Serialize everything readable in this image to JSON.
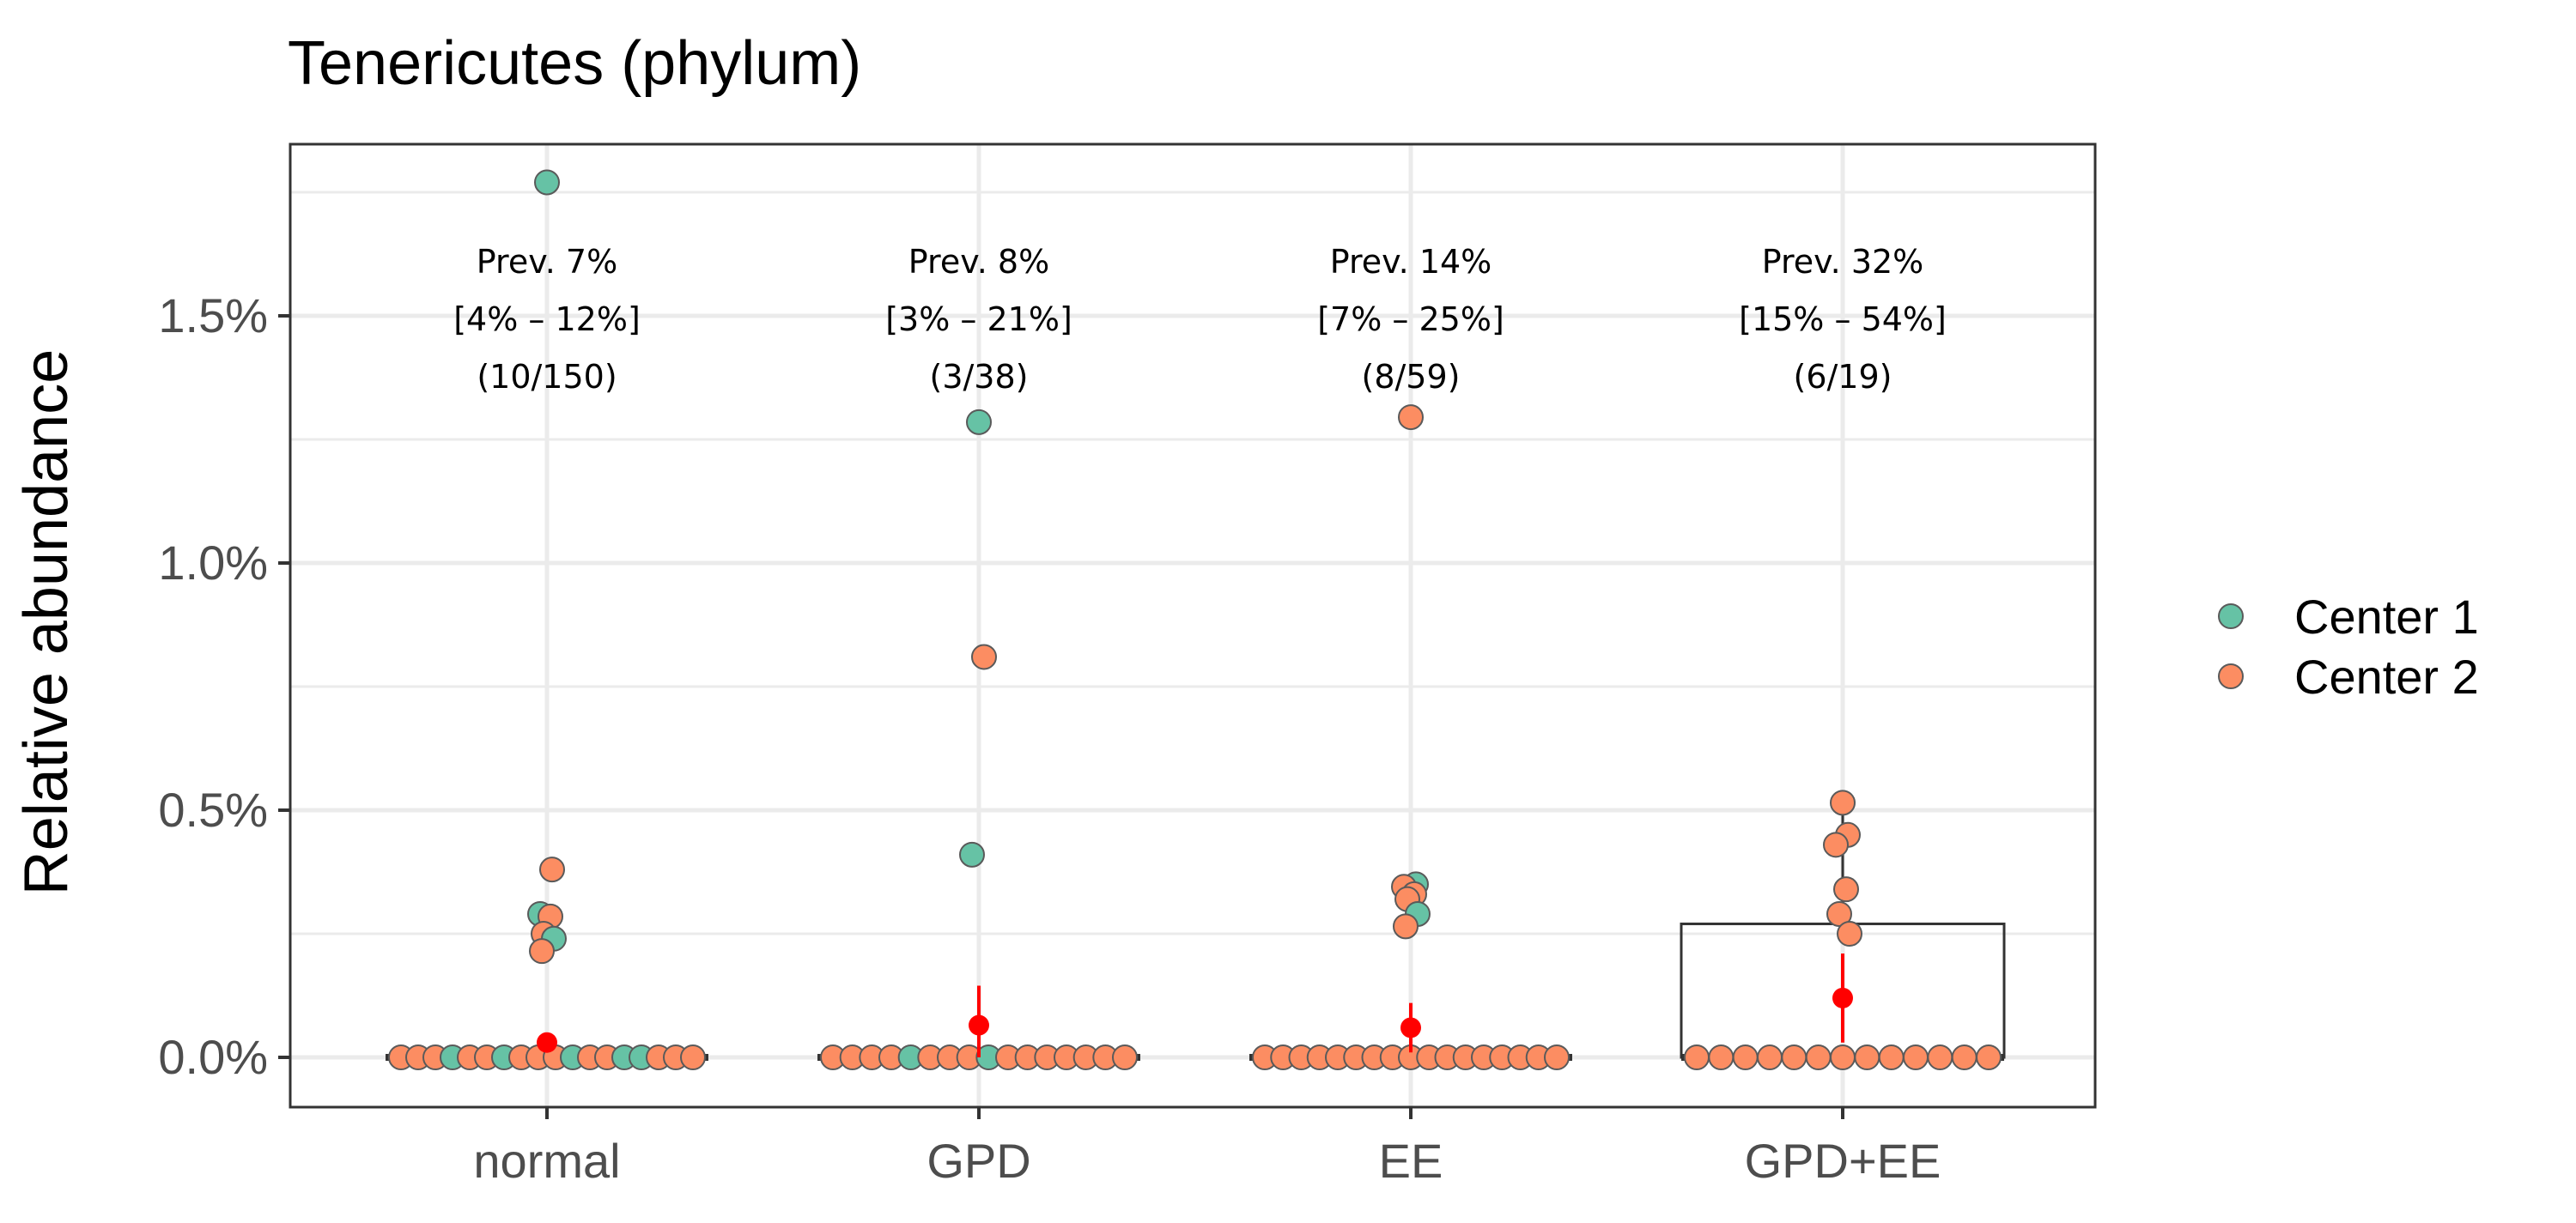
{
  "chart_data": {
    "type": "scatter",
    "title": "Tenericutes (phylum)",
    "xlabel": "",
    "ylabel": "Relative abundance",
    "ylim": [
      -0.1,
      1.85
    ],
    "yticks": [
      0,
      0.5,
      1.0,
      1.5
    ],
    "ytick_labels": [
      "0.0%",
      "0.5%",
      "1.0%",
      "1.5%"
    ],
    "grid": true,
    "legend": {
      "placement": "right",
      "entries": [
        {
          "name": "Center 1",
          "color": "#66c2a5"
        },
        {
          "name": "Center 2",
          "color": "#fc8d62"
        }
      ]
    },
    "categories": [
      "normal",
      "GPD",
      "EE",
      "GPD+EE"
    ],
    "groups": [
      {
        "category": "normal",
        "annotation": [
          "Prev. 7%",
          "[4% – 12%]",
          "(10/150)"
        ],
        "box": {
          "q1": 0,
          "median": 0,
          "q3": 0
        },
        "mean": 0.03,
        "ci": [
          0.03,
          0.03
        ],
        "points": [
          {
            "y": 1.77,
            "center": "Center 1"
          },
          {
            "y": 0.38,
            "center": "Center 2"
          },
          {
            "y": 0.29,
            "center": "Center 1"
          },
          {
            "y": 0.285,
            "center": "Center 2"
          },
          {
            "y": 0.25,
            "center": "Center 2"
          },
          {
            "y": 0.24,
            "center": "Center 1"
          },
          {
            "y": 0.215,
            "center": "Center 2"
          }
        ],
        "zero_points": [
          "Center 2",
          "Center 2",
          "Center 2",
          "Center 1",
          "Center 2",
          "Center 2",
          "Center 1",
          "Center 2",
          "Center 2",
          "Center 2",
          "Center 1",
          "Center 2",
          "Center 2",
          "Center 1",
          "Center 1",
          "Center 2",
          "Center 2",
          "Center 2"
        ]
      },
      {
        "category": "GPD",
        "annotation": [
          "Prev. 8%",
          "[3% – 21%]",
          "(3/38)"
        ],
        "box": {
          "q1": 0,
          "median": 0,
          "q3": 0
        },
        "mean": 0.065,
        "ci": [
          0.0,
          0.145
        ],
        "points": [
          {
            "y": 1.285,
            "center": "Center 1"
          },
          {
            "y": 0.81,
            "center": "Center 2"
          },
          {
            "y": 0.41,
            "center": "Center 1"
          }
        ],
        "zero_points": [
          "Center 2",
          "Center 2",
          "Center 2",
          "Center 2",
          "Center 1",
          "Center 2",
          "Center 2",
          "Center 2",
          "Center 1",
          "Center 2",
          "Center 2",
          "Center 2",
          "Center 2",
          "Center 2",
          "Center 2",
          "Center 2"
        ]
      },
      {
        "category": "EE",
        "annotation": [
          "Prev. 14%",
          "[7% – 25%]",
          "(8/59)"
        ],
        "box": {
          "q1": 0,
          "median": 0,
          "q3": 0
        },
        "mean": 0.06,
        "ci": [
          0.01,
          0.11
        ],
        "points": [
          {
            "y": 1.295,
            "center": "Center 2"
          },
          {
            "y": 0.35,
            "center": "Center 1"
          },
          {
            "y": 0.345,
            "center": "Center 2"
          },
          {
            "y": 0.33,
            "center": "Center 2"
          },
          {
            "y": 0.32,
            "center": "Center 2"
          },
          {
            "y": 0.29,
            "center": "Center 1"
          },
          {
            "y": 0.265,
            "center": "Center 2"
          }
        ],
        "zero_points": [
          "Center 2",
          "Center 2",
          "Center 2",
          "Center 2",
          "Center 2",
          "Center 2",
          "Center 2",
          "Center 2",
          "Center 2",
          "Center 2",
          "Center 2",
          "Center 2",
          "Center 2",
          "Center 2",
          "Center 2",
          "Center 2",
          "Center 2"
        ]
      },
      {
        "category": "GPD+EE",
        "annotation": [
          "Prev. 32%",
          "[15% – 54%]",
          "(6/19)"
        ],
        "box": {
          "q1": 0,
          "median": 0,
          "q3": 0.27
        },
        "whisker_high": 0.515,
        "mean": 0.12,
        "ci": [
          0.03,
          0.21
        ],
        "points": [
          {
            "y": 0.515,
            "center": "Center 2"
          },
          {
            "y": 0.45,
            "center": "Center 2"
          },
          {
            "y": 0.43,
            "center": "Center 2"
          },
          {
            "y": 0.34,
            "center": "Center 2"
          },
          {
            "y": 0.29,
            "center": "Center 2"
          },
          {
            "y": 0.25,
            "center": "Center 2"
          }
        ],
        "zero_points": [
          "Center 2",
          "Center 2",
          "Center 2",
          "Center 2",
          "Center 2",
          "Center 2",
          "Center 2",
          "Center 2",
          "Center 2",
          "Center 2",
          "Center 2",
          "Center 2",
          "Center 2"
        ]
      }
    ],
    "colors": {
      "center1": "#66c2a5",
      "center2": "#fc8d62",
      "mean": "#ff0000",
      "grid": "#ebebeb",
      "axis": "#333333"
    }
  }
}
